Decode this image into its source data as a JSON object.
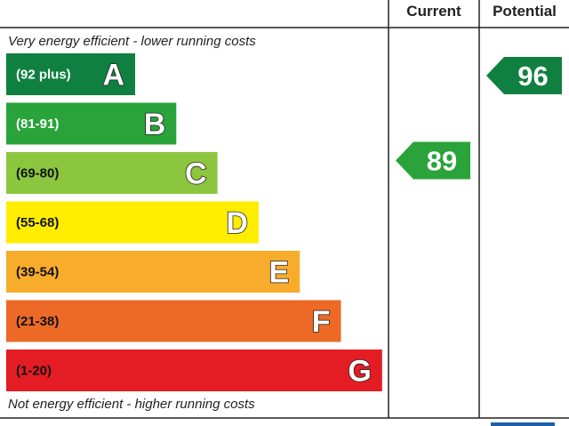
{
  "headers": {
    "current": "Current",
    "potential": "Potential"
  },
  "top_caption": "Very energy efficient - lower running costs",
  "bottom_caption": "Not energy efficient - higher running costs",
  "chart_data": {
    "type": "bar",
    "categories": [
      "A",
      "B",
      "C",
      "D",
      "E",
      "F",
      "G"
    ],
    "ranges": [
      "(92 plus)",
      "(81-91)",
      "(69-80)",
      "(55-68)",
      "(39-54)",
      "(21-38)",
      "(1-20)"
    ],
    "colors": [
      "#0f8040",
      "#29a33a",
      "#8cc63f",
      "#ffed00",
      "#f7ac2b",
      "#ec6a25",
      "#e31d23"
    ],
    "range_text_colors": [
      "#ffffff",
      "#ffffff",
      "#111111",
      "#111111",
      "#111111",
      "#111111",
      "#111111"
    ],
    "current": {
      "value": 89,
      "band": "B",
      "color": "#29a33a"
    },
    "potential": {
      "value": 96,
      "band": "A",
      "color": "#0f8040"
    }
  }
}
